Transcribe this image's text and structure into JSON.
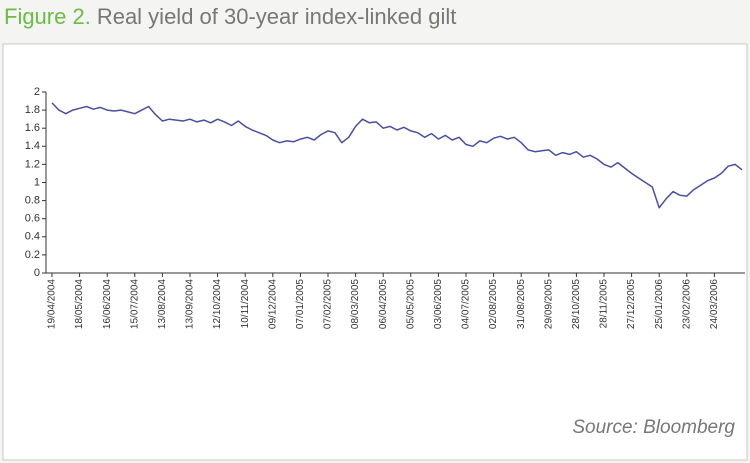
{
  "chart_data": {
    "type": "line",
    "figure_label": "Figure 2.",
    "title": "Real yield of 30-year index-linked gilt",
    "source": "Source: Bloomberg",
    "color": "#4a4fa3",
    "ylim": [
      0,
      2
    ],
    "yticks": [
      0,
      0.2,
      0.4,
      0.6,
      0.8,
      1,
      1.2,
      1.4,
      1.6,
      1.8,
      2
    ],
    "categories": [
      "19/04/2004",
      null,
      null,
      null,
      "18/05/2004",
      null,
      null,
      null,
      "16/06/2004",
      null,
      null,
      null,
      "15/07/2004",
      null,
      null,
      null,
      "13/08/2004",
      null,
      null,
      null,
      "13/09/2004",
      null,
      null,
      null,
      "12/10/2004",
      null,
      null,
      null,
      "10/11/2004",
      null,
      null,
      null,
      "09/12/2004",
      null,
      null,
      null,
      "07/01/2005",
      null,
      null,
      null,
      "07/02/2005",
      null,
      null,
      null,
      "08/03/2005",
      null,
      null,
      null,
      "06/04/2005",
      null,
      null,
      null,
      "05/05/2005",
      null,
      null,
      null,
      "03/06/2005",
      null,
      null,
      null,
      "04/07/2005",
      null,
      null,
      null,
      "02/08/2005",
      null,
      null,
      null,
      "31/08/2005",
      null,
      null,
      null,
      "29/09/2005",
      null,
      null,
      null,
      "28/10/2005",
      null,
      null,
      null,
      "28/11/2005",
      null,
      null,
      null,
      "27/12/2005",
      null,
      null,
      null,
      "25/01/2006",
      null,
      null,
      null,
      "23/02/2006",
      null,
      null,
      null,
      "24/03/2006",
      null,
      null,
      null,
      null
    ],
    "values": [
      1.88,
      1.8,
      1.76,
      1.8,
      1.82,
      1.84,
      1.81,
      1.83,
      1.8,
      1.79,
      1.8,
      1.78,
      1.76,
      1.8,
      1.84,
      1.75,
      1.68,
      1.7,
      1.69,
      1.68,
      1.7,
      1.67,
      1.69,
      1.66,
      1.7,
      1.67,
      1.63,
      1.68,
      1.62,
      1.58,
      1.55,
      1.52,
      1.47,
      1.44,
      1.46,
      1.45,
      1.48,
      1.5,
      1.47,
      1.53,
      1.57,
      1.55,
      1.44,
      1.5,
      1.62,
      1.7,
      1.66,
      1.67,
      1.6,
      1.62,
      1.58,
      1.61,
      1.57,
      1.55,
      1.5,
      1.54,
      1.48,
      1.52,
      1.47,
      1.5,
      1.42,
      1.4,
      1.46,
      1.44,
      1.49,
      1.51,
      1.48,
      1.5,
      1.44,
      1.36,
      1.34,
      1.35,
      1.36,
      1.3,
      1.33,
      1.31,
      1.34,
      1.28,
      1.3,
      1.26,
      1.2,
      1.17,
      1.22,
      1.16,
      1.1,
      1.05,
      1.0,
      0.95,
      0.72,
      0.82,
      0.9,
      0.86,
      0.85,
      0.92,
      0.97,
      1.02,
      1.05,
      1.1,
      1.18,
      1.2,
      1.14
    ]
  }
}
